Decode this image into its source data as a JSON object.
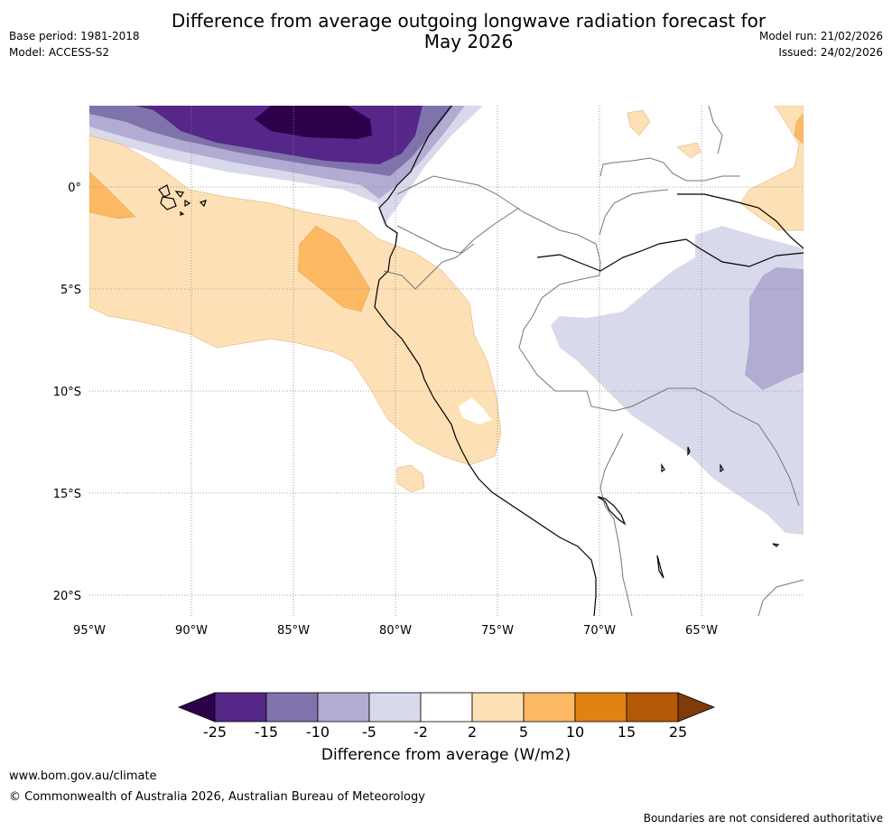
{
  "header": {
    "title_line1": "Difference from average outgoing longwave radiation forecast for",
    "title_line2": "May 2026",
    "base_period": "Base period: 1981-2018",
    "model": "Model: ACCESS-S2",
    "model_run": "Model run: 21/02/2026",
    "issued": "Issued: 24/02/2026"
  },
  "map": {
    "lon_labels": [
      "95°W",
      "90°W",
      "85°W",
      "80°W",
      "75°W",
      "70°W",
      "65°W"
    ],
    "lat_labels": [
      "0°",
      "5°S",
      "10°S",
      "15°S",
      "20°S"
    ],
    "lon_range": [
      -95,
      -60
    ],
    "lat_range": [
      -21,
      4
    ],
    "colors": {
      "c_m25": "#2d004b",
      "c_m15": "#542788",
      "c_m10": "#8073ac",
      "c_m5": "#b2abd2",
      "c_m2": "#d8daeb",
      "c_0": "#ffffff",
      "c_2": "#fee0b6",
      "c_5": "#fdb863",
      "c_10": "#e08214",
      "c_15": "#b35806",
      "c_25": "#7f3b08"
    }
  },
  "colorbar": {
    "title": "Difference from average (W/m2)",
    "ticks": [
      "-25",
      "-15",
      "-10",
      "-5",
      "-2",
      "2",
      "5",
      "10",
      "15",
      "25"
    ],
    "colors": [
      "#2d004b",
      "#542788",
      "#8073ac",
      "#b2abd2",
      "#d8daeb",
      "#ffffff",
      "#fee0b6",
      "#fdb863",
      "#e08214",
      "#b35806",
      "#7f3b08"
    ]
  },
  "footer": {
    "link": "www.bom.gov.au/climate",
    "copyright": "© Commonwealth of Australia 2026, Australian Bureau of Meteorology",
    "note": "Boundaries are not considered authoritative"
  }
}
